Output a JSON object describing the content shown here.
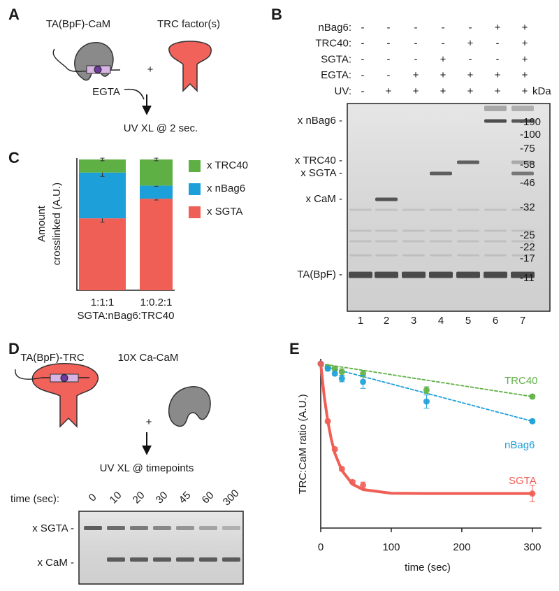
{
  "panel_a": {
    "letter": "A",
    "substrate": "TA(BpF)-CaM",
    "factor": "TRC factor(s)",
    "plus": "+",
    "reagent": "EGTA",
    "step": "UV XL @ 2 sec."
  },
  "panel_b": {
    "letter": "B",
    "conditions": [
      {
        "label": "nBag6:",
        "marks": [
          "-",
          "-",
          "-",
          "-",
          "-",
          "+",
          "+"
        ]
      },
      {
        "label": "TRC40:",
        "marks": [
          "-",
          "-",
          "-",
          "-",
          "+",
          "-",
          "+"
        ]
      },
      {
        "label": "SGTA:",
        "marks": [
          "-",
          "-",
          "-",
          "+",
          "-",
          "-",
          "+"
        ]
      },
      {
        "label": "EGTA:",
        "marks": [
          "-",
          "-",
          "+",
          "+",
          "+",
          "+",
          "+"
        ]
      },
      {
        "label": "UV:",
        "marks": [
          "-",
          "+",
          "+",
          "+",
          "+",
          "+",
          "+"
        ]
      }
    ],
    "unit": "kDa",
    "bands": [
      "x nBag6 -",
      "x TRC40 -",
      "x SGTA -",
      "x CaM -",
      "TA(BpF) -"
    ],
    "markers": [
      "-190",
      "-100",
      "-75",
      "-58",
      "-46",
      "-32",
      "-25",
      "-22",
      "-17",
      "-11"
    ],
    "lanes": [
      "1",
      "2",
      "3",
      "4",
      "5",
      "6",
      "7"
    ]
  },
  "chart_data": [
    {
      "type": "stacked_bar",
      "panel": "C",
      "categories": [
        "1:1:1",
        "1:0.2:1"
      ],
      "xlabel": "SGTA:nBag6:TRC40",
      "ylabel": [
        "Amount",
        "crosslinked (A.U.)"
      ],
      "ylim": [
        0,
        1
      ],
      "legend": "right",
      "series": [
        {
          "name": "x SGTA",
          "color": "#ef5f55",
          "values": [
            0.55,
            0.7
          ],
          "errors": [
            0.03,
            0.01
          ]
        },
        {
          "name": "x nBag6",
          "color": "#1d9fd9",
          "values": [
            0.35,
            0.1
          ],
          "errors": [
            0.03,
            0.005
          ]
        },
        {
          "name": "x TRC40",
          "color": "#5fb044",
          "values": [
            0.1,
            0.2
          ],
          "errors": [
            0.01,
            0.01
          ]
        }
      ]
    },
    {
      "type": "scatter",
      "panel": "E",
      "xlabel": "time (sec)",
      "ylabel": "TRC:CaM ratio (A.U.)",
      "x": [
        0,
        10,
        20,
        30,
        45,
        60,
        150,
        300
      ],
      "xlim": [
        0,
        313
      ],
      "xticks": [
        0,
        100,
        200,
        300
      ],
      "ylim": [
        0,
        1.03
      ],
      "series": [
        {
          "name": "TRC40",
          "color": "#5fb044",
          "values": [
            1.0,
            0.98,
            0.97,
            0.95,
            null,
            0.94,
            0.84,
            0.8
          ],
          "errors": [
            0,
            0.01,
            0.01,
            0.02,
            null,
            0.02,
            0.02,
            0.01
          ],
          "fit_style": "dashed",
          "fit_x": [
            0,
            300
          ],
          "fit_values": [
            1.0,
            0.8
          ]
        },
        {
          "name": "nBag6",
          "color": "#1d9fd9",
          "values": [
            1.0,
            0.97,
            0.94,
            0.91,
            null,
            0.89,
            0.77,
            0.65
          ],
          "errors": [
            0,
            0.01,
            0.01,
            0.02,
            null,
            0.04,
            0.04,
            0.01
          ],
          "fit_style": "dashed",
          "fit_x": [
            0,
            300
          ],
          "fit_values": [
            0.99,
            0.65
          ]
        },
        {
          "name": "SGTA",
          "color": "#ef5f55",
          "values": [
            1.0,
            0.65,
            0.48,
            0.36,
            0.28,
            0.26,
            null,
            0.21
          ],
          "errors": [
            0,
            0.01,
            0.01,
            0.01,
            0.01,
            0.02,
            null,
            0.05
          ],
          "fit_style": "solid",
          "fit_x": [
            0,
            5,
            10,
            15,
            20,
            30,
            45,
            60,
            100,
            150,
            300
          ],
          "fit_values": [
            1.0,
            0.8,
            0.65,
            0.54,
            0.455,
            0.35,
            0.267,
            0.234,
            0.212,
            0.21,
            0.21
          ]
        }
      ]
    }
  ],
  "panel_d": {
    "letter": "D",
    "substrate": "TA(BpF)-TRC",
    "partner": "10X Ca-CaM",
    "plus": "+",
    "step": "UV XL @ timepoints",
    "time_label": "time (sec):",
    "times": [
      "0",
      "10",
      "20",
      "30",
      "45",
      "60",
      "300"
    ],
    "bands": [
      "x SGTA -",
      "x CaM -"
    ]
  }
}
